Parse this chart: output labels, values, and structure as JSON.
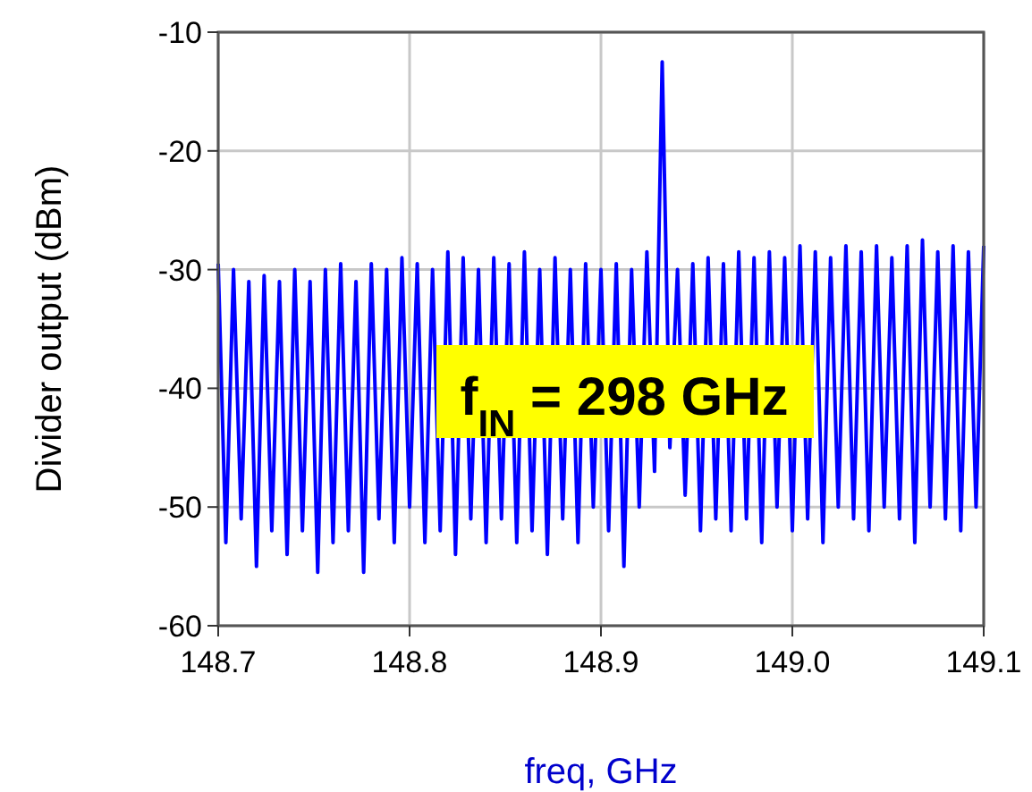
{
  "chart_data": {
    "type": "line",
    "xlabel": "freq, GHz",
    "ylabel": "Divider output (dBm)",
    "xlim": [
      148.7,
      149.1
    ],
    "xticks": [
      {
        "value": 148.7,
        "label": "148.7"
      },
      {
        "value": 148.8,
        "label": "148.8"
      },
      {
        "value": 148.9,
        "label": "148.9"
      },
      {
        "value": 149.0,
        "label": "149.0"
      },
      {
        "value": 149.1,
        "label": "149.1"
      }
    ],
    "ylim": [
      -60,
      -10
    ],
    "yticks": [
      -60,
      -50,
      -40,
      -30,
      -20,
      -10
    ],
    "grid": true,
    "marker": "none",
    "line_style": "solid",
    "annotations": [
      "f$_{IN}$ = 298 GHz"
    ],
    "x": [
      148.7,
      148.704,
      148.708,
      148.712,
      148.716,
      148.72,
      148.724,
      148.728,
      148.732,
      148.736,
      148.74,
      148.744,
      148.748,
      148.752,
      148.756,
      148.76,
      148.764,
      148.768,
      148.772,
      148.776,
      148.78,
      148.784,
      148.788,
      148.792,
      148.796,
      148.8,
      148.804,
      148.808,
      148.812,
      148.816,
      148.82,
      148.824,
      148.828,
      148.832,
      148.836,
      148.84,
      148.844,
      148.848,
      148.852,
      148.856,
      148.86,
      148.864,
      148.868,
      148.872,
      148.876,
      148.88,
      148.884,
      148.888,
      148.892,
      148.896,
      148.9,
      148.904,
      148.908,
      148.912,
      148.916,
      148.92,
      148.924,
      148.928,
      148.932,
      148.936,
      148.94,
      148.944,
      148.948,
      148.952,
      148.956,
      148.96,
      148.964,
      148.968,
      148.972,
      148.976,
      148.98,
      148.984,
      148.988,
      148.992,
      148.996,
      149.0,
      149.004,
      149.008,
      149.012,
      149.016,
      149.02,
      149.024,
      149.028,
      149.032,
      149.036,
      149.04,
      149.044,
      149.048,
      149.052,
      149.056,
      149.06,
      149.064,
      149.068,
      149.072,
      149.076,
      149.08,
      149.084,
      149.088,
      149.092,
      149.096,
      149.1
    ],
    "series": [
      {
        "color": "#0000ff",
        "values": [
          -29.5,
          -53,
          -30,
          -51,
          -31,
          -55,
          -30.5,
          -52,
          -31,
          -54,
          -30,
          -52,
          -31,
          -55.5,
          -30,
          -53,
          -29.5,
          -52,
          -31,
          -55.5,
          -29.5,
          -51,
          -30,
          -53,
          -29,
          -50,
          -29.5,
          -53,
          -30,
          -52,
          -28.5,
          -54,
          -29,
          -51,
          -30,
          -53,
          -29,
          -51,
          -29.5,
          -53,
          -28.5,
          -52,
          -30,
          -54,
          -29,
          -51,
          -30,
          -53,
          -29.5,
          -50,
          -30,
          -52,
          -29.5,
          -55,
          -30,
          -50,
          -28.5,
          -47,
          -12.5,
          -45,
          -30,
          -49,
          -29.5,
          -52,
          -29,
          -51,
          -29.5,
          -52,
          -28.5,
          -51,
          -29,
          -53,
          -28.5,
          -50,
          -29,
          -52,
          -28,
          -51,
          -28.5,
          -53,
          -29,
          -50,
          -28,
          -51,
          -28.5,
          -52,
          -28,
          -50,
          -29,
          -51,
          -28,
          -53,
          -27.5,
          -50,
          -28.5,
          -51,
          -28,
          -52,
          -28.5,
          -50,
          -28
        ]
      }
    ]
  }
}
